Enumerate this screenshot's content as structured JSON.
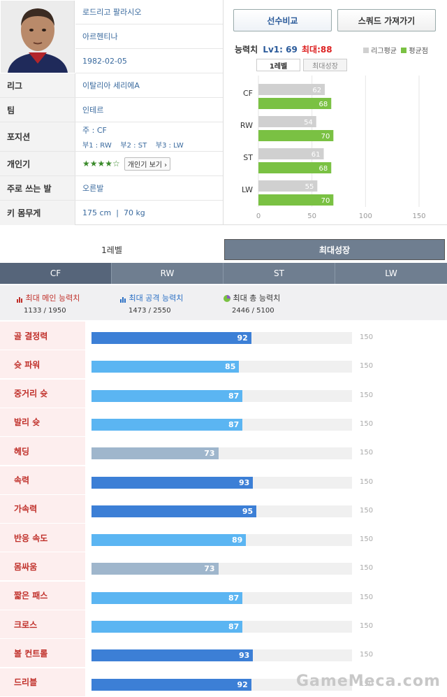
{
  "player": {
    "name": "로드리고 팔라시오",
    "nation": "아르헨티나",
    "birth": "1982-02-05"
  },
  "info": [
    {
      "label": "리그",
      "value": "이탈리아 세리에A"
    },
    {
      "label": "팀",
      "value": "인테르"
    },
    {
      "label": "포지션",
      "main": "주 : CF",
      "subs": "부1 : RW    부2 : ST    부3 : LW"
    },
    {
      "label": "개인기",
      "stars": "★★★★☆",
      "button": "개인기 보기 ›"
    },
    {
      "label": "주로 쓰는 발",
      "value": "오른발"
    },
    {
      "label": "키  몸무게",
      "value": "175 cm  |  70 kg"
    }
  ],
  "buttons": {
    "compare": "선수비교",
    "squad": "스쿼드 가져가기"
  },
  "ability": {
    "title": "능력치",
    "lv": "Lv1: 69",
    "max": "최대:88",
    "legend_league": "리그평균",
    "legend_avg": "평균점",
    "tab_lv1": "1레벨",
    "tab_max": "최대성장"
  },
  "chart_data": {
    "type": "bar",
    "categories": [
      "CF",
      "RW",
      "ST",
      "LW"
    ],
    "series": [
      {
        "name": "리그평균",
        "values": [
          62,
          54,
          61,
          55
        ],
        "color": "#d0d0d0"
      },
      {
        "name": "평균점",
        "values": [
          68,
          70,
          68,
          70
        ],
        "color": "#7ac143"
      }
    ],
    "xlim": [
      0,
      150
    ],
    "xticks": [
      "0",
      "50",
      "100",
      "150"
    ]
  },
  "level_tabs": {
    "lv1": "1레벨",
    "max": "최대성장"
  },
  "positions": [
    "CF",
    "RW",
    "ST",
    "LW"
  ],
  "summary": [
    {
      "label": "최대 메인 능력치",
      "value": "1133 / 1950",
      "icon": "bar-chart-icon"
    },
    {
      "label": "최대 공격 능력치",
      "value": "1473 / 2550",
      "icon": "attack-chart-icon"
    },
    {
      "label": "최대 총 능력치",
      "value": "2446 / 5100",
      "icon": "pie-chart-icon"
    }
  ],
  "stats": [
    {
      "label": "골 결정력",
      "value": 92,
      "max": "150",
      "kind": "main"
    },
    {
      "label": "슛 파워",
      "value": 85,
      "max": "150",
      "kind": "attack"
    },
    {
      "label": "중거리 슛",
      "value": 87,
      "max": "150",
      "kind": "attack"
    },
    {
      "label": "발리 슛",
      "value": 87,
      "max": "150",
      "kind": "attack"
    },
    {
      "label": "헤딩",
      "value": 73,
      "max": "150",
      "kind": "other"
    },
    {
      "label": "속력",
      "value": 93,
      "max": "150",
      "kind": "main"
    },
    {
      "label": "가속력",
      "value": 95,
      "max": "150",
      "kind": "main"
    },
    {
      "label": "반응 속도",
      "value": 89,
      "max": "150",
      "kind": "attack"
    },
    {
      "label": "몸싸움",
      "value": 73,
      "max": "150",
      "kind": "other"
    },
    {
      "label": "짧은 패스",
      "value": 87,
      "max": "150",
      "kind": "attack"
    },
    {
      "label": "크로스",
      "value": 87,
      "max": "150",
      "kind": "attack"
    },
    {
      "label": "볼 컨트롤",
      "value": 93,
      "max": "150",
      "kind": "main"
    },
    {
      "label": "드리블",
      "value": 92,
      "max": "150",
      "kind": "main"
    }
  ],
  "colors": {
    "main": "#3c7fd6",
    "attack": "#5bb5f2",
    "other": "#9fb6cc"
  },
  "watermark": "GameMeca.com"
}
